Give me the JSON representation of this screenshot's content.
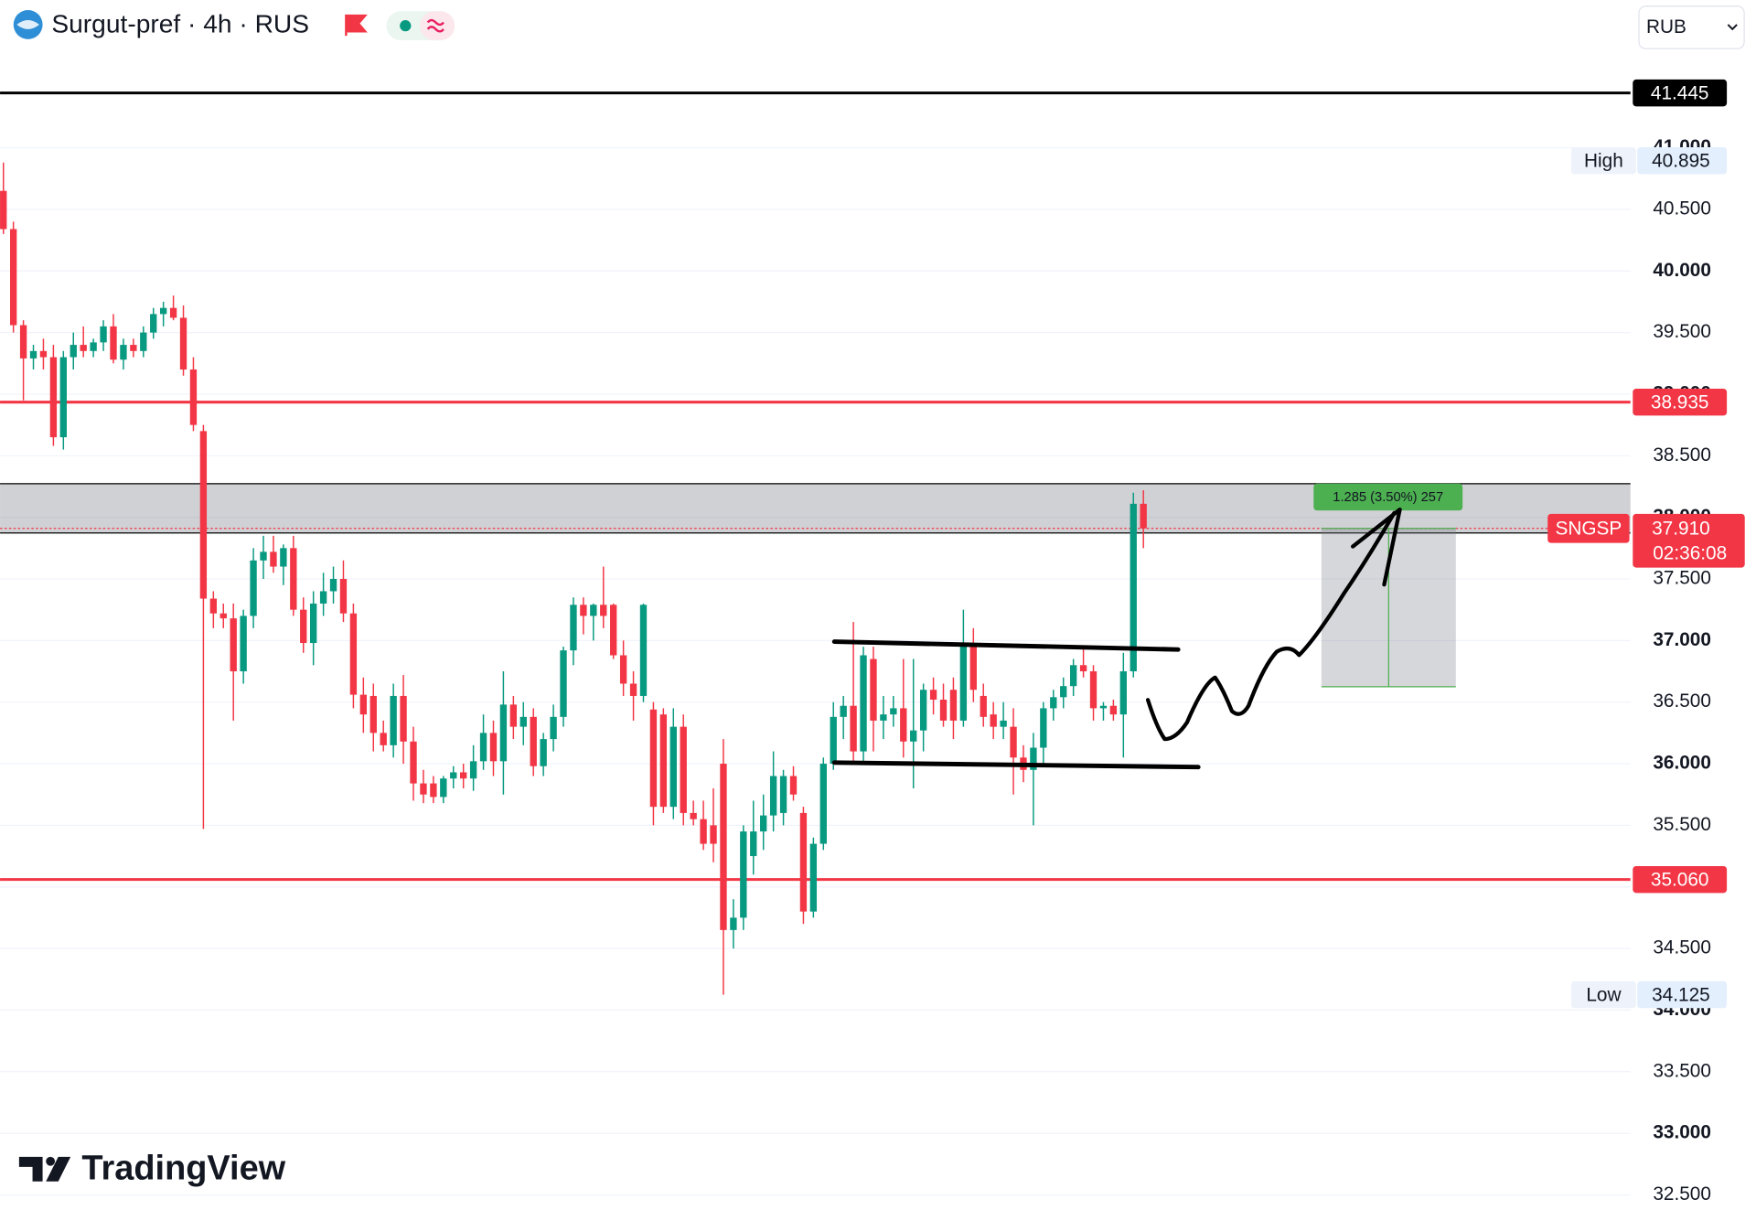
{
  "chart_data": {
    "type": "candlestick",
    "title": "Surgut-pref · 4h · RUS",
    "currency": "RUB",
    "symbol": "SNGSP",
    "countdown": "02:36:08",
    "brand": "TradingView",
    "up_color": "#089981",
    "down_color": "#f23645",
    "grid": true,
    "ylim": [
      32.409,
      41.745
    ],
    "yticks": [
      {
        "value": 32.5,
        "label": "32.500"
      },
      {
        "value": 33,
        "label": "33.000"
      },
      {
        "value": 33.5,
        "label": "33.500"
      },
      {
        "value": 34,
        "label": "34.000"
      },
      {
        "value": 34.5,
        "label": "34.500"
      },
      {
        "value": 35,
        "label": "35.000"
      },
      {
        "value": 35.5,
        "label": "35.500"
      },
      {
        "value": 36,
        "label": "36.000"
      },
      {
        "value": 36.5,
        "label": "36.500"
      },
      {
        "value": 37,
        "label": "37.000"
      },
      {
        "value": 37.5,
        "label": "37.500"
      },
      {
        "value": 38,
        "label": "38.000"
      },
      {
        "value": 38.5,
        "label": "38.500"
      },
      {
        "value": 39,
        "label": "39.000"
      },
      {
        "value": 39.5,
        "label": "39.500"
      },
      {
        "value": 40,
        "label": "40.000"
      },
      {
        "value": 40.5,
        "label": "40.500"
      },
      {
        "value": 41,
        "label": "41.000"
      }
    ],
    "open": [
      40.65,
      40.34,
      39.56,
      39.29,
      39.35,
      39.3,
      38.65,
      39.3,
      39.4,
      39.35,
      39.42,
      39.55,
      39.28,
      39.4,
      39.35,
      39.5,
      39.65,
      39.7,
      39.62,
      39.2,
      38.7,
      37.34,
      37.22,
      37.18,
      36.75,
      37.2,
      37.65,
      37.72,
      37.6,
      37.75,
      37.25,
      36.98,
      37.3,
      37.4,
      37.5,
      37.22,
      36.56,
      36.55,
      36.25,
      36.15,
      36.55,
      36.18,
      35.84,
      35.84,
      35.73,
      35.88,
      35.93,
      35.88,
      36.02,
      36.25,
      36.02,
      36.48,
      36.3,
      36.38,
      35.98,
      36.2,
      36.38,
      36.92,
      37.29,
      37.2,
      37.29,
      37.29,
      36.88,
      36.65,
      36.55,
      36.44,
      36.4,
      35.65,
      36.3,
      35.6,
      35.55,
      35.5,
      36.0,
      34.65,
      34.75,
      35.25,
      35.45,
      35.58,
      35.6,
      35.9,
      35.6,
      34.8,
      35.35,
      36.0,
      36.38,
      36.47,
      36.1,
      36.85,
      36.35,
      36.4,
      36.45,
      36.18,
      36.27,
      36.6,
      36.52,
      36.6,
      36.35,
      36.97,
      36.55,
      36.4,
      36.3,
      36.3,
      36.05,
      35.95,
      36.13,
      36.45,
      36.54,
      36.63,
      36.8,
      36.75,
      36.45,
      36.47,
      36.4,
      36.75,
      38.11
    ],
    "high": [
      40.88,
      40.4,
      39.6,
      39.4,
      39.45,
      39.4,
      39.35,
      39.5,
      39.55,
      39.45,
      39.6,
      39.65,
      39.45,
      39.45,
      39.55,
      39.7,
      39.75,
      39.8,
      39.72,
      39.3,
      38.75,
      37.4,
      37.3,
      37.3,
      37.25,
      37.75,
      37.85,
      37.85,
      37.78,
      37.85,
      37.35,
      37.4,
      37.55,
      37.6,
      37.65,
      37.3,
      36.7,
      36.65,
      36.35,
      36.65,
      36.72,
      36.3,
      35.95,
      35.9,
      35.9,
      35.98,
      36.0,
      36.15,
      36.4,
      36.35,
      36.75,
      36.55,
      36.5,
      36.45,
      36.25,
      36.48,
      36.95,
      37.35,
      37.35,
      37.3,
      37.6,
      37.3,
      37.0,
      36.75,
      37.3,
      36.5,
      36.45,
      36.45,
      36.4,
      35.7,
      35.7,
      35.8,
      36.2,
      34.9,
      35.5,
      35.7,
      35.75,
      36.1,
      35.95,
      35.98,
      35.65,
      35.4,
      36.05,
      36.5,
      36.55,
      37.15,
      36.95,
      36.95,
      36.55,
      36.55,
      36.85,
      36.85,
      36.65,
      36.7,
      36.65,
      36.7,
      37.25,
      37.1,
      36.65,
      36.5,
      36.5,
      36.45,
      36.15,
      36.25,
      36.5,
      36.6,
      36.7,
      36.85,
      36.95,
      36.8,
      36.5,
      36.52,
      36.9,
      38.2,
      38.22
    ],
    "low": [
      40.3,
      39.5,
      38.95,
      39.2,
      39.2,
      38.58,
      38.55,
      39.2,
      39.3,
      39.3,
      39.35,
      39.25,
      39.2,
      39.3,
      39.3,
      39.45,
      39.55,
      39.6,
      39.15,
      38.7,
      35.47,
      37.1,
      37.1,
      36.35,
      36.65,
      37.1,
      37.5,
      37.55,
      37.45,
      37.2,
      36.9,
      36.8,
      37.2,
      37.3,
      37.15,
      36.45,
      36.25,
      36.1,
      36.1,
      36.05,
      36.0,
      35.7,
      35.68,
      35.68,
      35.68,
      35.8,
      35.8,
      35.78,
      35.95,
      35.9,
      35.75,
      36.2,
      36.15,
      35.9,
      35.9,
      36.1,
      36.3,
      36.8,
      37.05,
      37.0,
      37.1,
      36.85,
      36.55,
      36.35,
      36.5,
      35.5,
      35.6,
      35.55,
      35.5,
      35.5,
      35.3,
      35.2,
      34.125,
      34.5,
      34.65,
      35.1,
      35.3,
      35.45,
      35.5,
      35.7,
      34.7,
      34.75,
      35.3,
      35.95,
      36.2,
      36.0,
      36.0,
      36.1,
      36.2,
      36.3,
      36.05,
      35.8,
      36.1,
      36.4,
      36.3,
      36.2,
      36.3,
      36.5,
      36.3,
      36.2,
      36.2,
      35.75,
      35.85,
      35.5,
      36.0,
      36.35,
      36.45,
      36.55,
      36.7,
      36.35,
      36.35,
      36.35,
      36.05,
      36.7,
      37.75
    ],
    "close": [
      40.34,
      39.56,
      39.29,
      39.35,
      39.3,
      38.65,
      39.3,
      39.4,
      39.35,
      39.42,
      39.55,
      39.28,
      39.4,
      39.35,
      39.5,
      39.65,
      39.7,
      39.62,
      39.2,
      38.75,
      37.34,
      37.22,
      37.18,
      36.75,
      37.2,
      37.65,
      37.72,
      37.6,
      37.75,
      37.25,
      36.98,
      37.3,
      37.4,
      37.5,
      37.22,
      36.56,
      36.4,
      36.25,
      36.15,
      36.55,
      36.18,
      35.84,
      35.75,
      35.73,
      35.88,
      35.93,
      35.88,
      36.02,
      36.25,
      36.02,
      36.48,
      36.3,
      36.38,
      35.98,
      36.2,
      36.38,
      36.92,
      37.29,
      37.2,
      37.29,
      37.2,
      36.88,
      36.65,
      36.55,
      37.29,
      35.65,
      35.65,
      36.3,
      35.6,
      35.55,
      35.35,
      35.35,
      34.65,
      34.75,
      35.45,
      35.45,
      35.58,
      35.9,
      35.9,
      35.75,
      34.8,
      35.35,
      36.0,
      36.38,
      36.47,
      36.1,
      36.88,
      36.35,
      36.4,
      36.45,
      36.18,
      36.27,
      36.6,
      36.52,
      36.35,
      36.35,
      36.97,
      36.6,
      36.38,
      36.3,
      36.35,
      36.05,
      35.95,
      36.13,
      36.45,
      36.54,
      36.63,
      36.8,
      36.75,
      36.45,
      36.47,
      36.4,
      36.75,
      38.11,
      37.91
    ],
    "levels": [
      {
        "value": 41.445,
        "color": "#000000"
      },
      {
        "value": 38.935,
        "color": "#f23645"
      },
      {
        "value": 35.06,
        "label": "35.060",
        "color": "#f23645"
      }
    ],
    "extremes": [
      {
        "name": "High",
        "value": 40.895
      },
      {
        "name": "Low",
        "value": 34.125
      }
    ],
    "last_price": {
      "value": 37.91,
      "label": "37.910"
    },
    "zone": [
      37.873,
      38.273
    ],
    "measure": {
      "from": 36.625,
      "to": 37.91,
      "label": "1.285 (3.50%) 257"
    }
  }
}
